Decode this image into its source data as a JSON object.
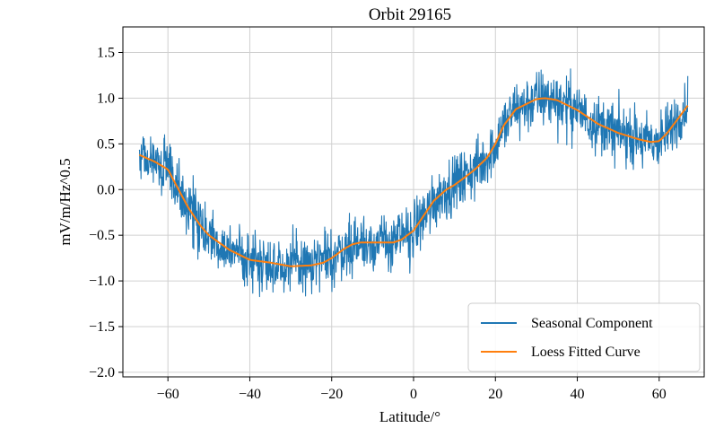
{
  "chart_data": {
    "type": "line",
    "title": "Orbit 29165",
    "xlabel": "Latitude/°",
    "ylabel": "mV/m/Hz^0.5",
    "xlim": [
      -71,
      71
    ],
    "ylim": [
      -2.05,
      1.78
    ],
    "xticks": [
      -60,
      -40,
      -20,
      0,
      20,
      40,
      60
    ],
    "xtick_labels": [
      "−60",
      "−40",
      "−20",
      "0",
      "20",
      "40",
      "60"
    ],
    "yticks": [
      -2.0,
      -1.5,
      -1.0,
      -0.5,
      0.0,
      0.5,
      1.0,
      1.5
    ],
    "ytick_labels": [
      "−2.0",
      "−1.5",
      "−1.0",
      "−0.5",
      "0.0",
      "0.5",
      "1.0",
      "1.5"
    ],
    "grid": true,
    "legend_position": "lower-right",
    "series": [
      {
        "name": "Seasonal Component",
        "color": "#1f77b4",
        "x_range": [
          -67,
          67
        ],
        "noise_amplitude": 0.35,
        "follows": "Loess Fitted Curve"
      },
      {
        "name": "Loess Fitted Curve",
        "color": "#ff7f0e",
        "x": [
          -67,
          -63,
          -60,
          -58,
          -55,
          -52,
          -50,
          -45,
          -40,
          -35,
          -30,
          -25,
          -22,
          -20,
          -17,
          -15,
          -13,
          -10,
          -5,
          -3,
          0,
          3,
          5,
          8,
          10,
          13,
          15,
          18,
          20,
          22,
          25,
          30,
          32,
          35,
          40,
          45,
          50,
          55,
          58,
          60,
          62,
          65,
          67
        ],
        "y": [
          0.38,
          0.3,
          0.22,
          0.05,
          -0.2,
          -0.4,
          -0.5,
          -0.66,
          -0.77,
          -0.8,
          -0.84,
          -0.83,
          -0.8,
          -0.75,
          -0.65,
          -0.6,
          -0.58,
          -0.58,
          -0.58,
          -0.55,
          -0.45,
          -0.25,
          -0.12,
          0.0,
          0.05,
          0.15,
          0.22,
          0.35,
          0.5,
          0.7,
          0.88,
          0.99,
          1.0,
          0.98,
          0.87,
          0.72,
          0.62,
          0.55,
          0.52,
          0.53,
          0.62,
          0.8,
          0.92
        ]
      }
    ]
  }
}
